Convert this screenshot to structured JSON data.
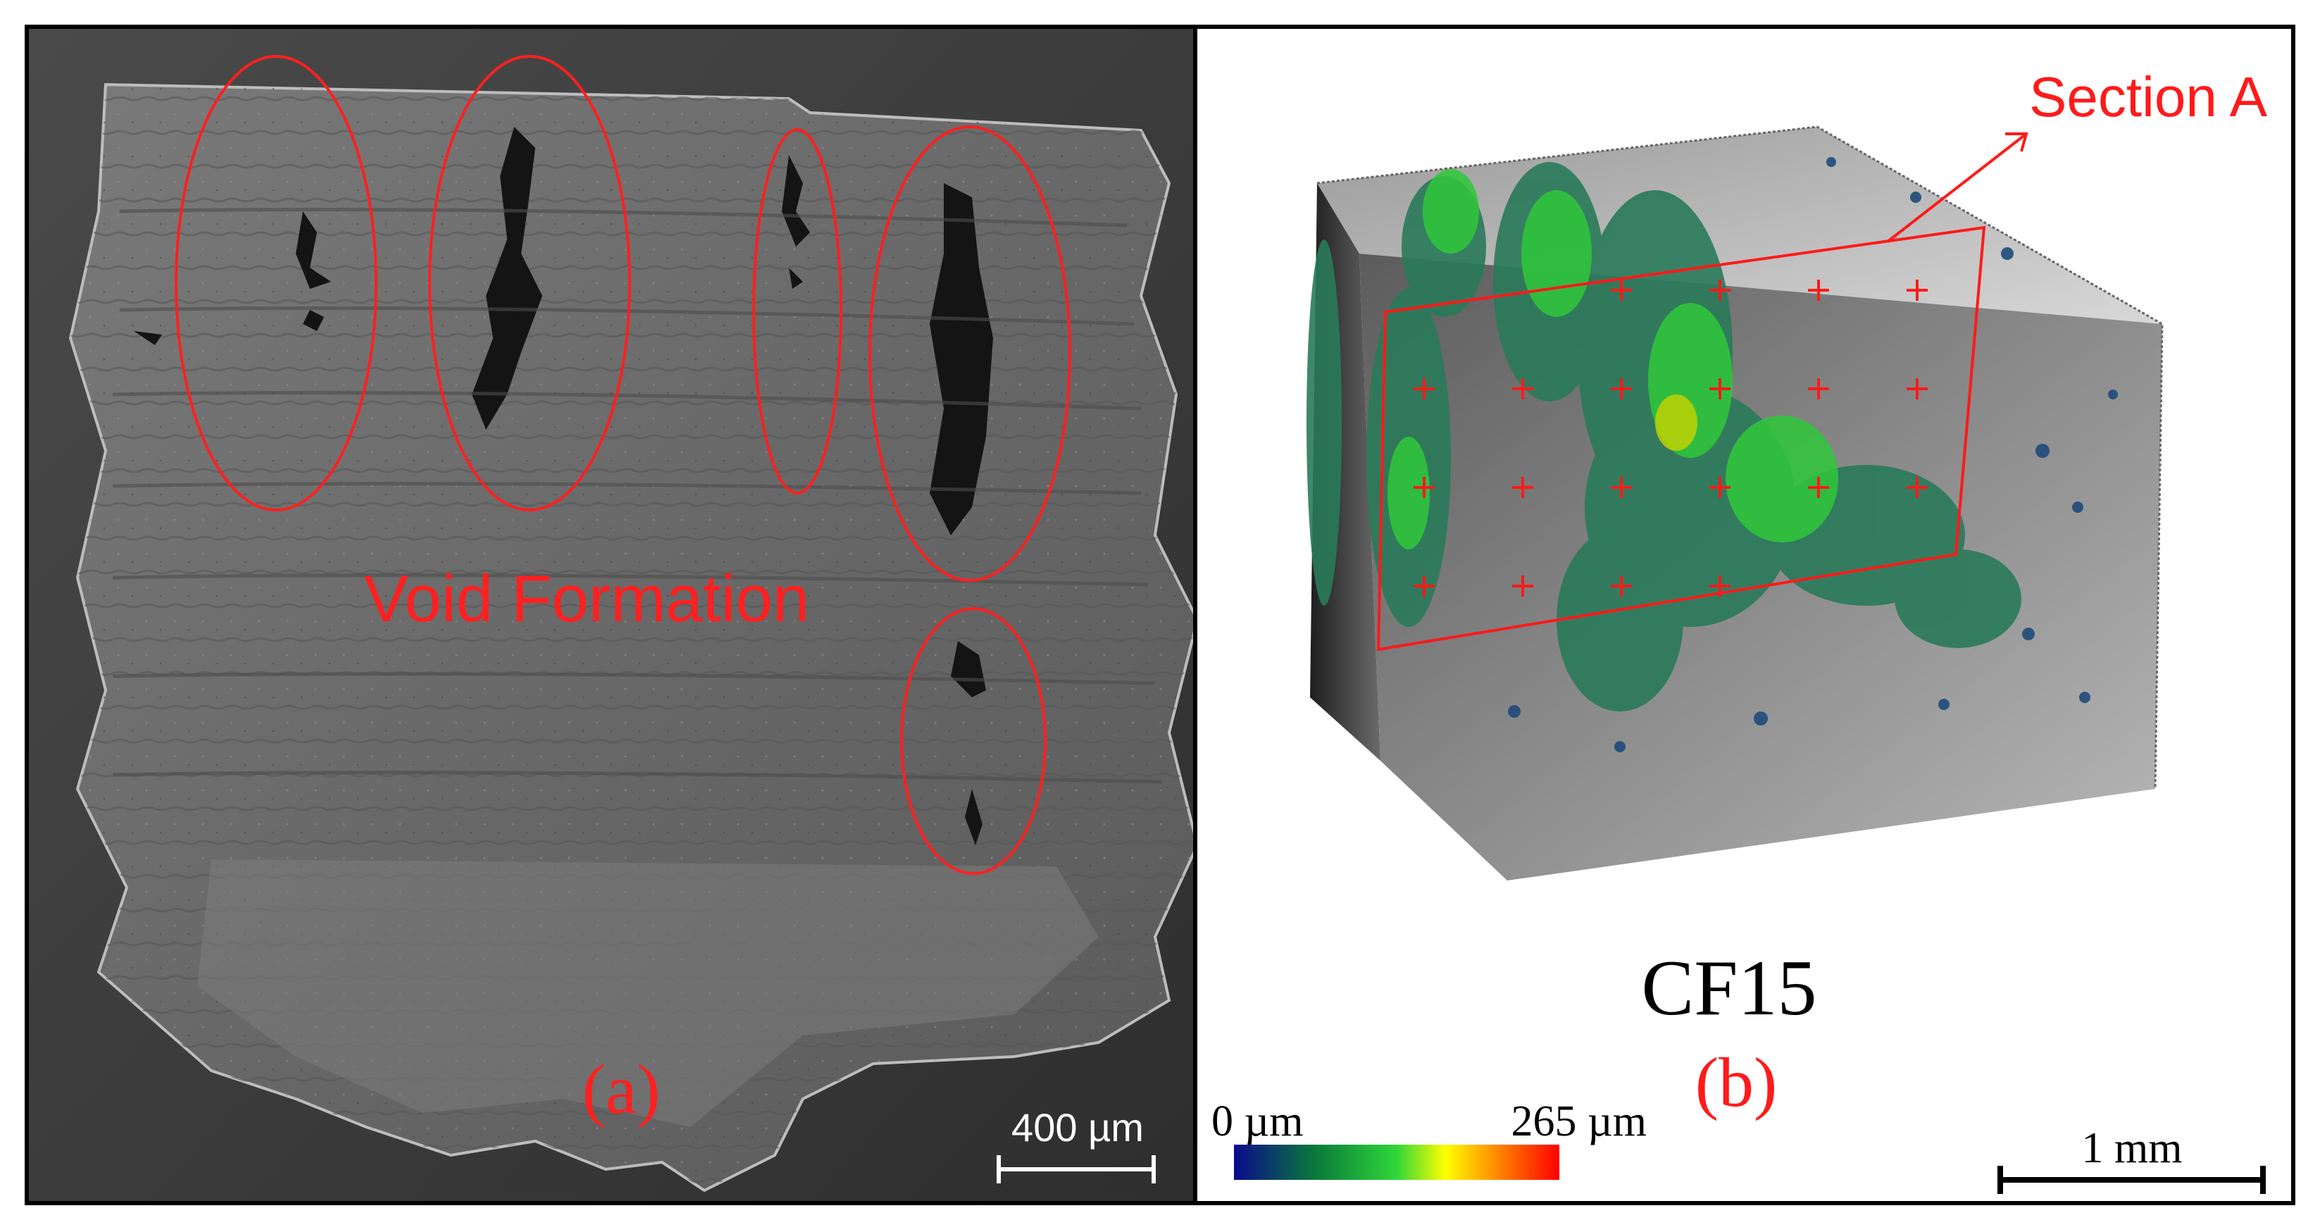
{
  "panel_a": {
    "annotation": "Void Formation",
    "panel_label": "(a)",
    "scale_bar_label": "400 µm",
    "colors": {
      "annotation": "#ff2020",
      "sem_base": "#6e6e6e",
      "background": "#3a3a3a"
    }
  },
  "panel_b": {
    "section_label": "Section A",
    "sample_label": "CF15",
    "panel_label": "(b)",
    "colorbar": {
      "min_label": "0 µm",
      "max_label": "265 µm",
      "stops": [
        "#0a0a8c",
        "#0a7a3a",
        "#2fd63a",
        "#ffff00",
        "#ff8000",
        "#ff0000"
      ]
    },
    "scale_bar_label": "1 mm",
    "colors": {
      "section": "#ff1a1a",
      "cube": "#8a8a8a"
    }
  }
}
